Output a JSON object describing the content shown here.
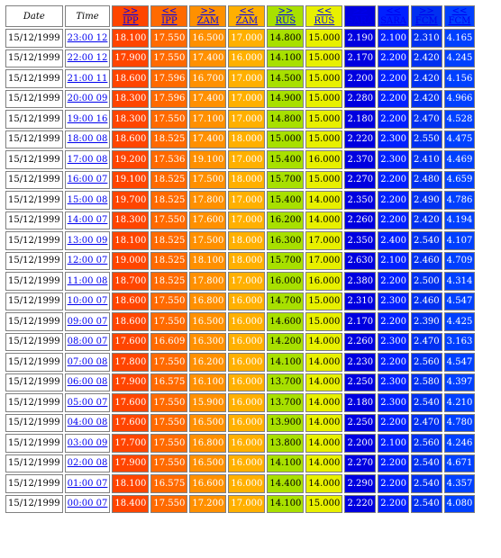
{
  "columns": {
    "date": "Date",
    "time": "Time",
    "series": [
      {
        "arrow": ">>",
        "label": "IPP",
        "color": "#ff4500"
      },
      {
        "arrow": "<<",
        "label": "IPP",
        "color": "#ff6a00"
      },
      {
        "arrow": ">>",
        "label": "ZAM",
        "color": "#ff9000"
      },
      {
        "arrow": "<<",
        "label": "ZAM",
        "color": "#ffb000"
      },
      {
        "arrow": ">>",
        "label": "RUS",
        "color": "#a8e000"
      },
      {
        "arrow": "<<",
        "label": "RUS",
        "color": "#e8f000"
      },
      {
        "arrow": ">>",
        "label": "SARA",
        "color": "#0000e0"
      },
      {
        "arrow": "<<",
        "label": "SARA",
        "color": "#0020ff"
      },
      {
        "arrow": ">>",
        "label": "FCM",
        "color": "#0030f0"
      },
      {
        "arrow": "<<",
        "label": "FCM",
        "color": "#0040ff"
      }
    ]
  },
  "rows": [
    {
      "date": "15/12/1999",
      "time": "23:00 12",
      "values": [
        "18.100",
        "17.550",
        "16.500",
        "17.000",
        "14.800",
        "15.000",
        "2.190",
        "2.100",
        "2.310",
        "4.165"
      ]
    },
    {
      "date": "15/12/1999",
      "time": "22:00 12",
      "values": [
        "17.900",
        "17.550",
        "17.400",
        "16.000",
        "14.100",
        "15.000",
        "2.170",
        "2.200",
        "2.420",
        "4.245"
      ]
    },
    {
      "date": "15/12/1999",
      "time": "21:00 11",
      "values": [
        "18.600",
        "17.596",
        "16.700",
        "17.000",
        "14.500",
        "15.000",
        "2.200",
        "2.200",
        "2.420",
        "4.156"
      ]
    },
    {
      "date": "15/12/1999",
      "time": "20:00 09",
      "values": [
        "18.300",
        "17.596",
        "17.400",
        "17.000",
        "14.900",
        "15.000",
        "2.280",
        "2.200",
        "2.420",
        "4.966"
      ]
    },
    {
      "date": "15/12/1999",
      "time": "19:00 16",
      "values": [
        "18.300",
        "17.550",
        "17.100",
        "17.000",
        "14.800",
        "15.000",
        "2.180",
        "2.200",
        "2.470",
        "4.528"
      ]
    },
    {
      "date": "15/12/1999",
      "time": "18:00 08",
      "values": [
        "18.600",
        "18.525",
        "17.400",
        "18.000",
        "15.000",
        "15.000",
        "2.220",
        "2.300",
        "2.550",
        "4.475"
      ]
    },
    {
      "date": "15/12/1999",
      "time": "17:00 08",
      "values": [
        "19.200",
        "17.536",
        "19.100",
        "17.000",
        "15.400",
        "16.000",
        "2.370",
        "2.300",
        "2.410",
        "4.469"
      ]
    },
    {
      "date": "15/12/1999",
      "time": "16:00 07",
      "values": [
        "19.100",
        "18.525",
        "17.500",
        "18.000",
        "15.700",
        "15.000",
        "2.270",
        "2.200",
        "2.480",
        "4.659"
      ]
    },
    {
      "date": "15/12/1999",
      "time": "15:00 08",
      "values": [
        "19.700",
        "18.525",
        "17.800",
        "17.000",
        "15.400",
        "14.000",
        "2.350",
        "2.200",
        "2.490",
        "4.786"
      ]
    },
    {
      "date": "15/12/1999",
      "time": "14:00 07",
      "values": [
        "18.300",
        "17.550",
        "17.600",
        "17.000",
        "16.200",
        "14.000",
        "2.260",
        "2.200",
        "2.420",
        "4.194"
      ]
    },
    {
      "date": "15/12/1999",
      "time": "13:00 09",
      "values": [
        "18.100",
        "18.525",
        "17.500",
        "18.000",
        "16.300",
        "17.000",
        "2.350",
        "2.400",
        "2.540",
        "4.107"
      ]
    },
    {
      "date": "15/12/1999",
      "time": "12:00 07",
      "values": [
        "19.000",
        "18.525",
        "18.100",
        "18.000",
        "15.700",
        "17.000",
        "2.630",
        "2.100",
        "2.460",
        "4.709"
      ]
    },
    {
      "date": "15/12/1999",
      "time": "11:00 08",
      "values": [
        "18.700",
        "18.525",
        "17.800",
        "17.000",
        "16.000",
        "16.000",
        "2.380",
        "2.200",
        "2.500",
        "4.314"
      ]
    },
    {
      "date": "15/12/1999",
      "time": "10:00 07",
      "values": [
        "18.600",
        "17.550",
        "16.800",
        "16.000",
        "14.700",
        "15.000",
        "2.310",
        "2.300",
        "2.460",
        "4.547"
      ]
    },
    {
      "date": "15/12/1999",
      "time": "09:00 07",
      "values": [
        "18.600",
        "17.550",
        "16.500",
        "16.000",
        "14.600",
        "15.000",
        "2.170",
        "2.200",
        "2.390",
        "4.425"
      ]
    },
    {
      "date": "15/12/1999",
      "time": "08:00 07",
      "values": [
        "17.600",
        "16.609",
        "16.300",
        "16.000",
        "14.200",
        "14.000",
        "2.260",
        "2.300",
        "2.470",
        "3.163"
      ]
    },
    {
      "date": "15/12/1999",
      "time": "07:00 08",
      "values": [
        "17.800",
        "17.550",
        "16.200",
        "16.000",
        "14.100",
        "14.000",
        "2.230",
        "2.200",
        "2.560",
        "4.547"
      ]
    },
    {
      "date": "15/12/1999",
      "time": "06:00 08",
      "values": [
        "17.900",
        "16.575",
        "16.100",
        "16.000",
        "13.700",
        "14.000",
        "2.250",
        "2.300",
        "2.580",
        "4.397"
      ]
    },
    {
      "date": "15/12/1999",
      "time": "05:00 07",
      "values": [
        "17.600",
        "17.550",
        "15.900",
        "16.000",
        "13.700",
        "14.000",
        "2.180",
        "2.300",
        "2.540",
        "4.210"
      ]
    },
    {
      "date": "15/12/1999",
      "time": "04:00 08",
      "values": [
        "17.600",
        "17.550",
        "16.500",
        "16.000",
        "13.900",
        "14.000",
        "2.250",
        "2.200",
        "2.470",
        "4.780"
      ]
    },
    {
      "date": "15/12/1999",
      "time": "03:00 09",
      "values": [
        "17.700",
        "17.550",
        "16.800",
        "16.000",
        "13.800",
        "14.000",
        "2.200",
        "2.100",
        "2.560",
        "4.246"
      ]
    },
    {
      "date": "15/12/1999",
      "time": "02:00 08",
      "values": [
        "17.900",
        "17.550",
        "16.500",
        "16.000",
        "14.100",
        "14.000",
        "2.270",
        "2.200",
        "2.540",
        "4.671"
      ]
    },
    {
      "date": "15/12/1999",
      "time": "01:00 07",
      "values": [
        "18.100",
        "16.575",
        "16.600",
        "16.000",
        "14.400",
        "14.000",
        "2.290",
        "2.200",
        "2.540",
        "4.357"
      ]
    },
    {
      "date": "15/12/1999",
      "time": "00:00 07",
      "values": [
        "18.400",
        "17.550",
        "17.200",
        "17.000",
        "14.100",
        "15.000",
        "2.220",
        "2.200",
        "2.540",
        "4.080"
      ]
    }
  ]
}
